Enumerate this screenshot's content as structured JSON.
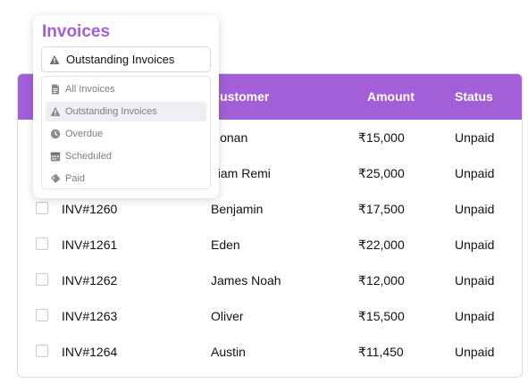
{
  "table": {
    "headers": {
      "customer": "Customer",
      "amount": "Amount",
      "status": "Status"
    },
    "rows": [
      {
        "invoice": "",
        "customer": "Ronan",
        "amount": "₹15,000",
        "status": "Unpaid"
      },
      {
        "invoice": "",
        "customer": "Liam Remi",
        "amount": "₹25,000",
        "status": "Unpaid"
      },
      {
        "invoice": "INV#1260",
        "customer": "Benjamin",
        "amount": "₹17,500",
        "status": "Unpaid"
      },
      {
        "invoice": "INV#1261",
        "customer": "Eden",
        "amount": "₹22,000",
        "status": "Unpaid"
      },
      {
        "invoice": "INV#1262",
        "customer": "James Noah",
        "amount": "₹12,000",
        "status": "Unpaid"
      },
      {
        "invoice": "INV#1263",
        "customer": "Oliver",
        "amount": "₹15,500",
        "status": "Unpaid"
      },
      {
        "invoice": "INV#1264",
        "customer": "Austin",
        "amount": "₹11,450",
        "status": "Unpaid"
      }
    ]
  },
  "filter": {
    "title": "Invoices",
    "selected": "Outstanding Invoices",
    "selected_icon": "warning-icon",
    "options": [
      {
        "label": "All Invoices",
        "icon": "document-icon"
      },
      {
        "label": "Outstanding Invoices",
        "icon": "warning-icon"
      },
      {
        "label": "Overdue",
        "icon": "clock-icon"
      },
      {
        "label": "Scheduled",
        "icon": "calendar-icon"
      },
      {
        "label": "Paid",
        "icon": "ticket-icon"
      }
    ]
  },
  "colors": {
    "accent": "#a25fd8",
    "icon_gray": "#8a8a93"
  }
}
